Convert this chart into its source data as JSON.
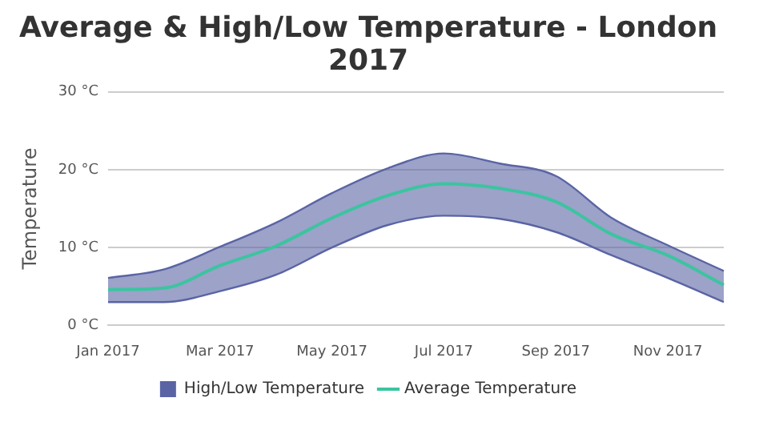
{
  "chart_data": {
    "type": "line",
    "title": "Average & High/Low Temperature - London 2017",
    "ylabel": "Temperature",
    "categories": [
      "Jan 2017",
      null,
      "Mar 2017",
      null,
      "May 2017",
      null,
      "Jul 2017",
      null,
      "Sep 2017",
      null,
      "Nov 2017",
      null
    ],
    "series": [
      {
        "name": "High/Low Temperature",
        "type": "area",
        "color": "#5a64a4",
        "values": [
          6.1,
          7.2,
          10.1,
          13.2,
          17,
          20.2,
          22.1,
          20.8,
          19.2,
          13.8,
          10.3,
          7
        ]
      },
      {
        "type": "line",
        "color": "#5a64a4",
        "values": [
          3,
          3,
          4.4,
          6.5,
          10,
          12.9,
          14.1,
          13.7,
          12,
          9,
          6.1,
          3
        ]
      },
      {
        "name": "Average Temperature",
        "type": "line",
        "color": "#3cc4a0",
        "values": [
          4.6,
          4.8,
          7.7,
          10.2,
          13.8,
          16.7,
          18.2,
          17.6,
          15.9,
          11.7,
          9,
          5.2
        ]
      }
    ],
    "ylim": [
      0,
      30
    ],
    "yticks": [
      {
        "value": 0,
        "label": "0 °C"
      },
      {
        "value": 10,
        "label": "10 °C"
      },
      {
        "value": 20,
        "label": "20 °C"
      },
      {
        "value": 30,
        "label": "30 °C"
      }
    ],
    "grid": "y",
    "legend": "bottom",
    "marker": "none",
    "line_style": "solid"
  }
}
